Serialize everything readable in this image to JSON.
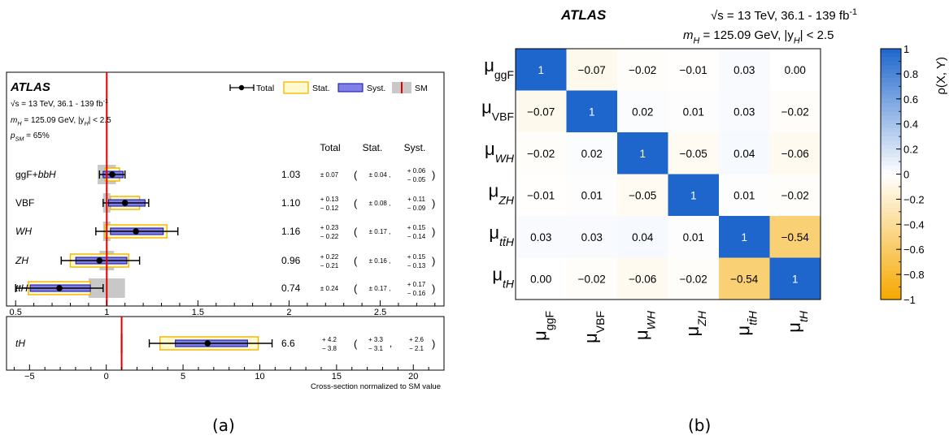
{
  "captions": {
    "a": "(a)",
    "b": "(b)"
  },
  "colors": {
    "stat_fill": "#fffacd",
    "stat_stroke": "#f0b400",
    "syst_fill": "#7f7fe8",
    "syst_stroke": "#1010a0",
    "sm_band": "#c8c8c8",
    "sm_line": "#e00000",
    "heat_pos": "#1f66cc",
    "heat_neg": "#f5a800"
  },
  "chart_data": [
    {
      "type": "scatter",
      "panel": "a",
      "brand": "ATLAS",
      "info": [
        {
          "pre": "√s = 13 TeV, 36.1 - 139 fb",
          "sup": "-1"
        },
        {
          "pre": "m",
          "sub": "H",
          "post": " = 125.09 GeV, |y",
          "sub2": "H",
          "post2": "| < 2.5"
        },
        {
          "pre": "p",
          "sub": "SM",
          "post": " = 65%"
        }
      ],
      "legend": {
        "total": "Total",
        "stat": "Stat.",
        "syst": "Syst.",
        "sm": "SM",
        "placement": "top-right"
      },
      "columns": {
        "total": "Total",
        "stat": "Stat.",
        "syst": "Syst."
      },
      "xlabel": "Cross-section normalized to SM value",
      "upper": {
        "xlim": [
          0.45,
          2.85
        ],
        "ticks": [
          "0.5",
          "1",
          "1.5",
          "2",
          "2.5"
        ],
        "tick_values": [
          0.5,
          1,
          1.5,
          2,
          2.5
        ],
        "rows": [
          {
            "label": "ggF+bbH",
            "value": 1.03,
            "value_text": "1.03",
            "tot_up": 0.07,
            "tot_dn": 0.07,
            "stat_up": 0.04,
            "stat_dn": 0.04,
            "syst_up": 0.06,
            "syst_dn": 0.05,
            "sm_up": 0.05,
            "sm_dn": 0.05,
            "total_text": "± 0.07",
            "stat_text": "± 0.04 ,",
            "syst_up_text": "+ 0.06",
            "syst_dn_text": "− 0.05"
          },
          {
            "label": "VBF",
            "value": 1.1,
            "value_text": "1.10",
            "tot_up": 0.13,
            "tot_dn": 0.12,
            "stat_up": 0.08,
            "stat_dn": 0.08,
            "syst_up": 0.11,
            "syst_dn": 0.09,
            "sm_up": 0.02,
            "sm_dn": 0.02,
            "total_up_text": "+ 0.13",
            "total_dn_text": "− 0.12",
            "stat_text": "± 0.08 ,",
            "syst_up_text": "+ 0.11",
            "syst_dn_text": "− 0.09"
          },
          {
            "label": "WH",
            "value": 1.16,
            "value_text": "1.16",
            "tot_up": 0.23,
            "tot_dn": 0.22,
            "stat_up": 0.17,
            "stat_dn": 0.17,
            "syst_up": 0.15,
            "syst_dn": 0.14,
            "sm_up": 0.02,
            "sm_dn": 0.02,
            "total_up_text": "+ 0.23",
            "total_dn_text": "− 0.22",
            "stat_text": "± 0.17 ,",
            "syst_up_text": "+ 0.15",
            "syst_dn_text": "− 0.14"
          },
          {
            "label": "ZH",
            "value": 0.96,
            "value_text": "0.96",
            "tot_up": 0.22,
            "tot_dn": 0.21,
            "stat_up": 0.16,
            "stat_dn": 0.16,
            "syst_up": 0.15,
            "syst_dn": 0.13,
            "sm_up": 0.04,
            "sm_dn": 0.04,
            "total_up_text": "+ 0.22",
            "total_dn_text": "− 0.21",
            "stat_text": "± 0.16 ,",
            "syst_up_text": "+ 0.15",
            "syst_dn_text": "− 0.13"
          },
          {
            "label": "ttH",
            "value": 0.74,
            "value_text": "0.74",
            "tot_up": 0.24,
            "tot_dn": 0.24,
            "stat_up": 0.17,
            "stat_dn": 0.17,
            "syst_up": 0.17,
            "syst_dn": 0.16,
            "sm_up": 0.1,
            "sm_dn": 0.1,
            "total_text": "± 0.24",
            "stat_text": "± 0.17 ,",
            "syst_up_text": "+ 0.17",
            "syst_dn_text": "− 0.16"
          }
        ]
      },
      "lower": {
        "xlim": [
          -6.5,
          22
        ],
        "ticks": [
          "−5",
          "0",
          "5",
          "10",
          "15",
          "20"
        ],
        "tick_values": [
          -5,
          0,
          5,
          10,
          15,
          20
        ],
        "rows": [
          {
            "label": "tH",
            "value": 6.6,
            "value_text": "6.6",
            "tot_up": 4.2,
            "tot_dn": 3.8,
            "stat_up": 3.3,
            "stat_dn": 3.1,
            "syst_up": 2.6,
            "syst_dn": 2.1,
            "sm_up": 0.07,
            "sm_dn": 0.07,
            "total_up_text": "+ 4.2",
            "total_dn_text": "− 3.8",
            "stat_up_text": "+ 3.3",
            "stat_dn_text": "− 3.1",
            "syst_up_text": "+ 2.6",
            "syst_dn_text": "− 2.1"
          }
        ]
      }
    },
    {
      "type": "heatmap",
      "panel": "b",
      "brand": "ATLAS",
      "info": [
        {
          "pre": "√s = 13 TeV, 36.1 - 139 fb",
          "sup": "-1"
        },
        {
          "pre": "m",
          "sub": "H",
          "post": " = 125.09 GeV, |y",
          "sub2": "H",
          "post2": "| < 2.5"
        }
      ],
      "labels": [
        {
          "mu": "μ",
          "sub": "ggF",
          "italic": false
        },
        {
          "mu": "μ",
          "sub": "VBF",
          "italic": false
        },
        {
          "mu": "μ",
          "sub": "WH",
          "italic": true
        },
        {
          "mu": "μ",
          "sub": "ZH",
          "italic": true
        },
        {
          "mu": "μ",
          "sub": "tt̄H",
          "italic": true
        },
        {
          "mu": "μ",
          "sub": "tH",
          "italic": true
        }
      ],
      "matrix": [
        [
          1,
          -0.07,
          -0.02,
          -0.01,
          0.03,
          0.0
        ],
        [
          -0.07,
          1,
          0.02,
          0.01,
          0.03,
          -0.02
        ],
        [
          -0.02,
          0.02,
          1,
          -0.05,
          0.04,
          -0.06
        ],
        [
          -0.01,
          0.01,
          -0.05,
          1,
          0.01,
          -0.02
        ],
        [
          0.03,
          0.03,
          0.04,
          0.01,
          1,
          -0.54
        ],
        [
          0.0,
          -0.02,
          -0.06,
          -0.02,
          -0.54,
          1
        ]
      ],
      "cell_text": [
        [
          "1",
          "−0.07",
          "−0.02",
          "−0.01",
          "0.03",
          "0.00"
        ],
        [
          "−0.07",
          "1",
          "0.02",
          "0.01",
          "0.03",
          "−0.02"
        ],
        [
          "−0.02",
          "0.02",
          "1",
          "−0.05",
          "0.04",
          "−0.06"
        ],
        [
          "−0.01",
          "0.01",
          "−0.05",
          "1",
          "0.01",
          "−0.02"
        ],
        [
          "0.03",
          "0.03",
          "0.04",
          "0.01",
          "1",
          "−0.54"
        ],
        [
          "0.00",
          "−0.02",
          "−0.06",
          "−0.02",
          "−0.54",
          "1"
        ]
      ],
      "colorbar": {
        "label": "ρ(X, Y)",
        "range": [
          -1,
          1
        ],
        "ticks": [
          "1",
          "0.8",
          "0.6",
          "0.4",
          "0.2",
          "0",
          "−0.2",
          "−0.4",
          "−0.6",
          "−0.8",
          "−1"
        ],
        "tick_values": [
          1,
          0.8,
          0.6,
          0.4,
          0.2,
          0,
          -0.2,
          -0.4,
          -0.6,
          -0.8,
          -1
        ]
      }
    }
  ]
}
